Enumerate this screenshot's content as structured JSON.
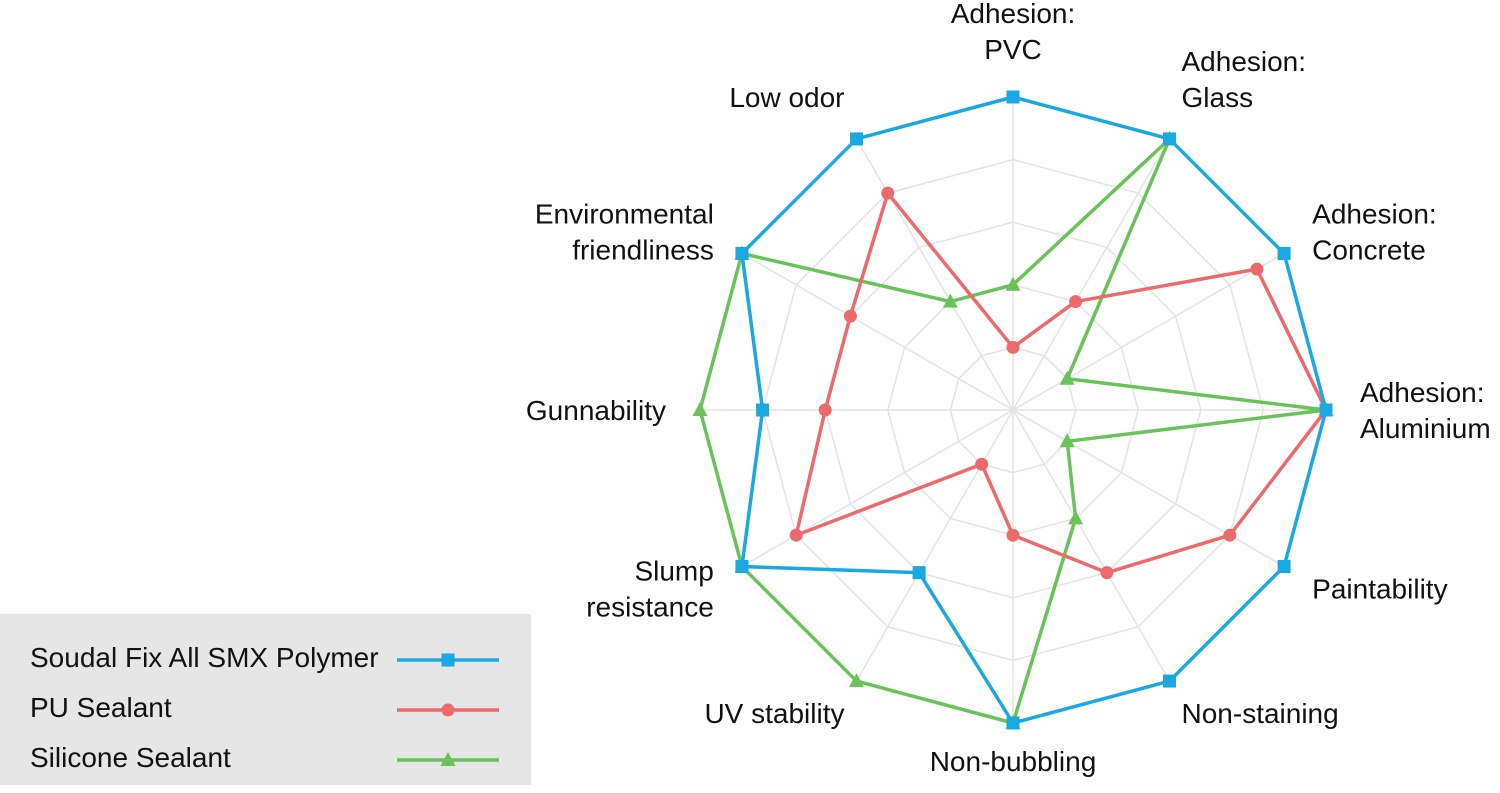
{
  "chart_data": {
    "type": "radar",
    "axes": [
      [
        "Adhesion:",
        "PVC"
      ],
      [
        "Adhesion:",
        "Glass"
      ],
      [
        "Adhesion:",
        "Concrete"
      ],
      [
        "Adhesion:",
        "Aluminium"
      ],
      [
        "Paintability"
      ],
      [
        "Non-staining"
      ],
      [
        "Non-bubbling"
      ],
      [
        "UV stability"
      ],
      [
        "Slump",
        "resistance"
      ],
      [
        "Gunnability"
      ],
      [
        "Environmental",
        "friendliness"
      ],
      [
        "Low odor"
      ]
    ],
    "rmax": 5,
    "grid_levels": [
      1,
      2,
      3,
      4,
      5
    ],
    "series": [
      {
        "name": "Soudal Fix All SMX Polymer",
        "color": "#1aa8e0",
        "marker": "square",
        "values": [
          5,
          5,
          5,
          5,
          5,
          5,
          5,
          3,
          5,
          4,
          5,
          5
        ]
      },
      {
        "name": "PU Sealant",
        "color": "#ec6a6b",
        "marker": "circle",
        "values": [
          1,
          2,
          4.5,
          5,
          4,
          3,
          2,
          1,
          4,
          3,
          3,
          4
        ]
      },
      {
        "name": "Silicone Sealant",
        "color": "#6ac25a",
        "marker": "triangle",
        "values": [
          2,
          5,
          1,
          5,
          1,
          2,
          5,
          5,
          5,
          5,
          5,
          2
        ]
      }
    ]
  },
  "legend": {
    "items": [
      {
        "label": "Soudal Fix All SMX Polymer"
      },
      {
        "label": "PU Sealant"
      },
      {
        "label": "Silicone Sealant"
      }
    ]
  }
}
